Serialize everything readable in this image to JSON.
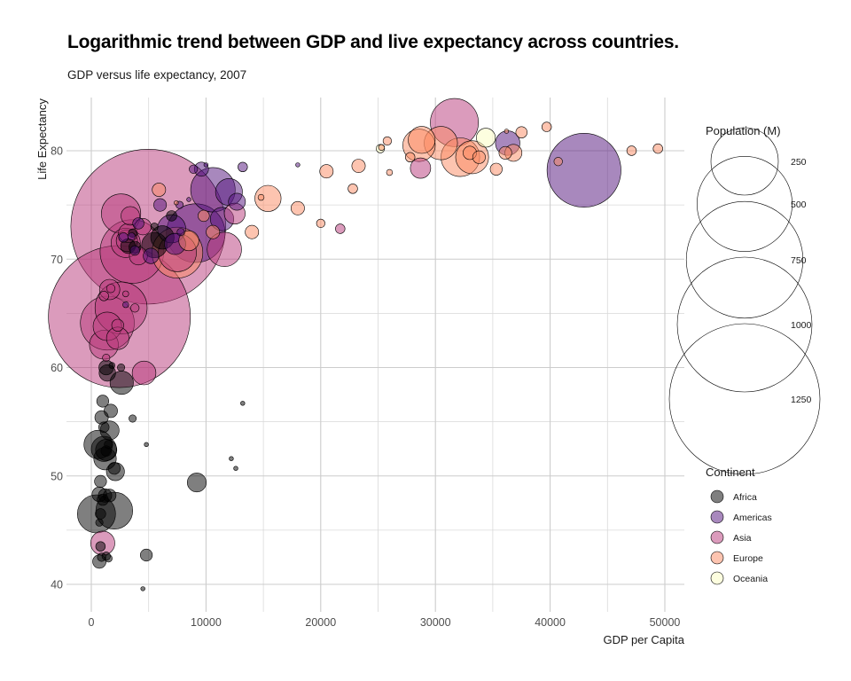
{
  "chart_data": {
    "type": "scatter",
    "title": "Logarithmic trend between GDP and live expectancy across countries.",
    "subtitle": "GDP versus life expectancy, 2007",
    "xlabel": "GDP per Capita",
    "ylabel": "Life Expectancy",
    "xlim": [
      -2000,
      52000
    ],
    "ylim": [
      37.6,
      85.2
    ],
    "x_ticks": [
      0,
      10000,
      20000,
      30000,
      40000,
      50000
    ],
    "y_ticks": [
      40,
      50,
      60,
      70,
      80
    ],
    "grid": true,
    "size_legend": {
      "title": "Population (M)",
      "placement": "right",
      "values": [
        250,
        500,
        750,
        1000,
        1250
      ]
    },
    "color_legend": {
      "title": "Continent",
      "placement": "right",
      "entries": [
        {
          "name": "Africa",
          "color": "#000000"
        },
        {
          "name": "Americas",
          "color": "#51127c"
        },
        {
          "name": "Asia",
          "color": "#b73779"
        },
        {
          "name": "Europe",
          "color": "#fc8961"
        },
        {
          "name": "Oceania",
          "color": "#fcfdbf"
        }
      ]
    },
    "series": [
      {
        "name": "Africa",
        "color": "#000000",
        "points": [
          [
            450,
            46.5,
            80
          ],
          [
            2000,
            46.8,
            75
          ],
          [
            600,
            52.9,
            45
          ],
          [
            9200,
            49.4,
            20
          ],
          [
            2650,
            58.6,
            30
          ],
          [
            1100,
            52.5,
            35
          ],
          [
            1200,
            51.6,
            28
          ],
          [
            1300,
            52.4,
            25
          ],
          [
            1600,
            54.2,
            20
          ],
          [
            2100,
            50.4,
            18
          ],
          [
            1400,
            59.5,
            15
          ],
          [
            1300,
            60.0,
            12
          ],
          [
            1700,
            56.0,
            10
          ],
          [
            1000,
            56.9,
            8
          ],
          [
            900,
            55.4,
            10
          ],
          [
            700,
            48.3,
            12
          ],
          [
            1200,
            48.2,
            10
          ],
          [
            1600,
            48.2,
            9
          ],
          [
            800,
            49.5,
            8
          ],
          [
            800,
            43.5,
            5
          ],
          [
            700,
            42.1,
            10
          ],
          [
            900,
            42.5,
            4
          ],
          [
            1300,
            42.6,
            4
          ],
          [
            1500,
            42.4,
            3
          ],
          [
            4800,
            42.7,
            8
          ],
          [
            4500,
            39.6,
            1
          ],
          [
            13200,
            56.7,
            1
          ],
          [
            12200,
            51.6,
            1
          ],
          [
            12600,
            50.7,
            1
          ],
          [
            4800,
            52.9,
            1
          ],
          [
            3600,
            55.3,
            3
          ],
          [
            1100,
            54.5,
            6
          ],
          [
            1000,
            47.8,
            7
          ],
          [
            2000,
            50.7,
            8
          ],
          [
            700,
            45.7,
            3
          ],
          [
            1300,
            52.3,
            6
          ],
          [
            1500,
            52.9,
            4
          ],
          [
            2600,
            60.0,
            3
          ],
          [
            1800,
            60.2,
            2
          ],
          [
            800,
            46.5,
            6
          ],
          [
            5500,
            71.3,
            36
          ],
          [
            3800,
            71.1,
            8
          ],
          [
            7000,
            74.0,
            6
          ],
          [
            6200,
            72.0,
            30
          ],
          [
            3200,
            71.2,
            12
          ],
          [
            3600,
            72.4,
            4
          ],
          [
            5500,
            73.0,
            3
          ]
        ]
      },
      {
        "name": "Americas",
        "color": "#51127c",
        "points": [
          [
            42950,
            78.2,
            301
          ],
          [
            36300,
            80.7,
            33
          ],
          [
            12000,
            76.2,
            40
          ],
          [
            9100,
            72.4,
            190
          ],
          [
            7000,
            72.8,
            44
          ],
          [
            11400,
            73.7,
            30
          ],
          [
            10600,
            76.4,
            109
          ],
          [
            13200,
            78.5,
            5
          ],
          [
            9600,
            78.3,
            11
          ],
          [
            7300,
            71.4,
            25
          ],
          [
            12700,
            75.3,
            16
          ],
          [
            8900,
            78.3,
            4
          ],
          [
            5200,
            70.3,
            13
          ],
          [
            6000,
            75.0,
            9
          ],
          [
            4100,
            73.3,
            7
          ],
          [
            3500,
            72.1,
            3
          ],
          [
            2800,
            72.0,
            5
          ],
          [
            3800,
            70.8,
            5
          ],
          [
            18000,
            78.7,
            1
          ],
          [
            7800,
            72.5,
            3
          ],
          [
            10000,
            78.7,
            1
          ],
          [
            8500,
            75.5,
            1
          ],
          [
            7700,
            75.0,
            3
          ],
          [
            3000,
            65.8,
            2
          ]
        ]
      },
      {
        "name": "Asia",
        "color": "#b73779",
        "points": [
          [
            4959,
            73.0,
            1319
          ],
          [
            2452,
            64.7,
            1111
          ],
          [
            3540,
            70.7,
            223
          ],
          [
            2600,
            65.5,
            150
          ],
          [
            1400,
            64.1,
            160
          ],
          [
            31656,
            82.6,
            127
          ],
          [
            2600,
            74.2,
            85
          ],
          [
            7500,
            70.6,
            80
          ],
          [
            11600,
            70.9,
            65
          ],
          [
            1100,
            62.1,
            46
          ],
          [
            1400,
            63.8,
            45
          ],
          [
            4600,
            59.5,
            31
          ],
          [
            3000,
            71.5,
            47
          ],
          [
            1600,
            67.2,
            23
          ],
          [
            1000,
            43.8,
            32
          ],
          [
            2300,
            62.7,
            28
          ],
          [
            3200,
            72.4,
            20
          ],
          [
            3100,
            71.7,
            25
          ],
          [
            4100,
            70.3,
            18
          ],
          [
            4500,
            73.0,
            15
          ],
          [
            12500,
            74.2,
            24
          ],
          [
            3400,
            74.0,
            19
          ],
          [
            21700,
            72.8,
            5
          ],
          [
            28700,
            78.4,
            23
          ],
          [
            3000,
            66.8,
            2
          ],
          [
            1300,
            60.9,
            3
          ],
          [
            1100,
            66.6,
            5
          ],
          [
            1700,
            67.3,
            4
          ],
          [
            2300,
            63.9,
            8
          ],
          [
            3800,
            65.5,
            4
          ]
        ]
      },
      {
        "name": "Europe",
        "color": "#fc8961",
        "points": [
          [
            32170,
            79.4,
            82
          ],
          [
            30470,
            80.7,
            61
          ],
          [
            28570,
            80.5,
            58
          ],
          [
            33200,
            79.4,
            60
          ],
          [
            28800,
            81.0,
            40
          ],
          [
            15400,
            75.6,
            38
          ],
          [
            8500,
            71.7,
            22
          ],
          [
            7500,
            70.6,
            143
          ],
          [
            10600,
            72.5,
            10
          ],
          [
            5900,
            76.4,
            10
          ],
          [
            9800,
            74.0,
            7
          ],
          [
            14000,
            72.5,
            10
          ],
          [
            18000,
            74.7,
            10
          ],
          [
            20500,
            78.1,
            10
          ],
          [
            22800,
            76.5,
            5
          ],
          [
            23300,
            78.6,
            10
          ],
          [
            25800,
            80.9,
            4
          ],
          [
            26000,
            78.0,
            2
          ],
          [
            27800,
            79.4,
            5
          ],
          [
            33000,
            79.8,
            10
          ],
          [
            33800,
            79.4,
            9
          ],
          [
            35300,
            78.3,
            8
          ],
          [
            36100,
            79.8,
            9
          ],
          [
            36800,
            79.8,
            16
          ],
          [
            37500,
            81.7,
            7
          ],
          [
            39700,
            82.2,
            5
          ],
          [
            40700,
            79.0,
            4
          ],
          [
            47100,
            80.0,
            5
          ],
          [
            49400,
            80.2,
            5
          ],
          [
            20000,
            73.3,
            4
          ],
          [
            14800,
            75.7,
            2
          ],
          [
            25300,
            80.3,
            2
          ],
          [
            7400,
            75.2,
            1
          ],
          [
            36200,
            81.8,
            1
          ]
        ]
      },
      {
        "name": "Oceania",
        "color": "#fcfdbf",
        "points": [
          [
            34400,
            81.2,
            20
          ],
          [
            25200,
            80.2,
            4
          ]
        ]
      }
    ]
  }
}
